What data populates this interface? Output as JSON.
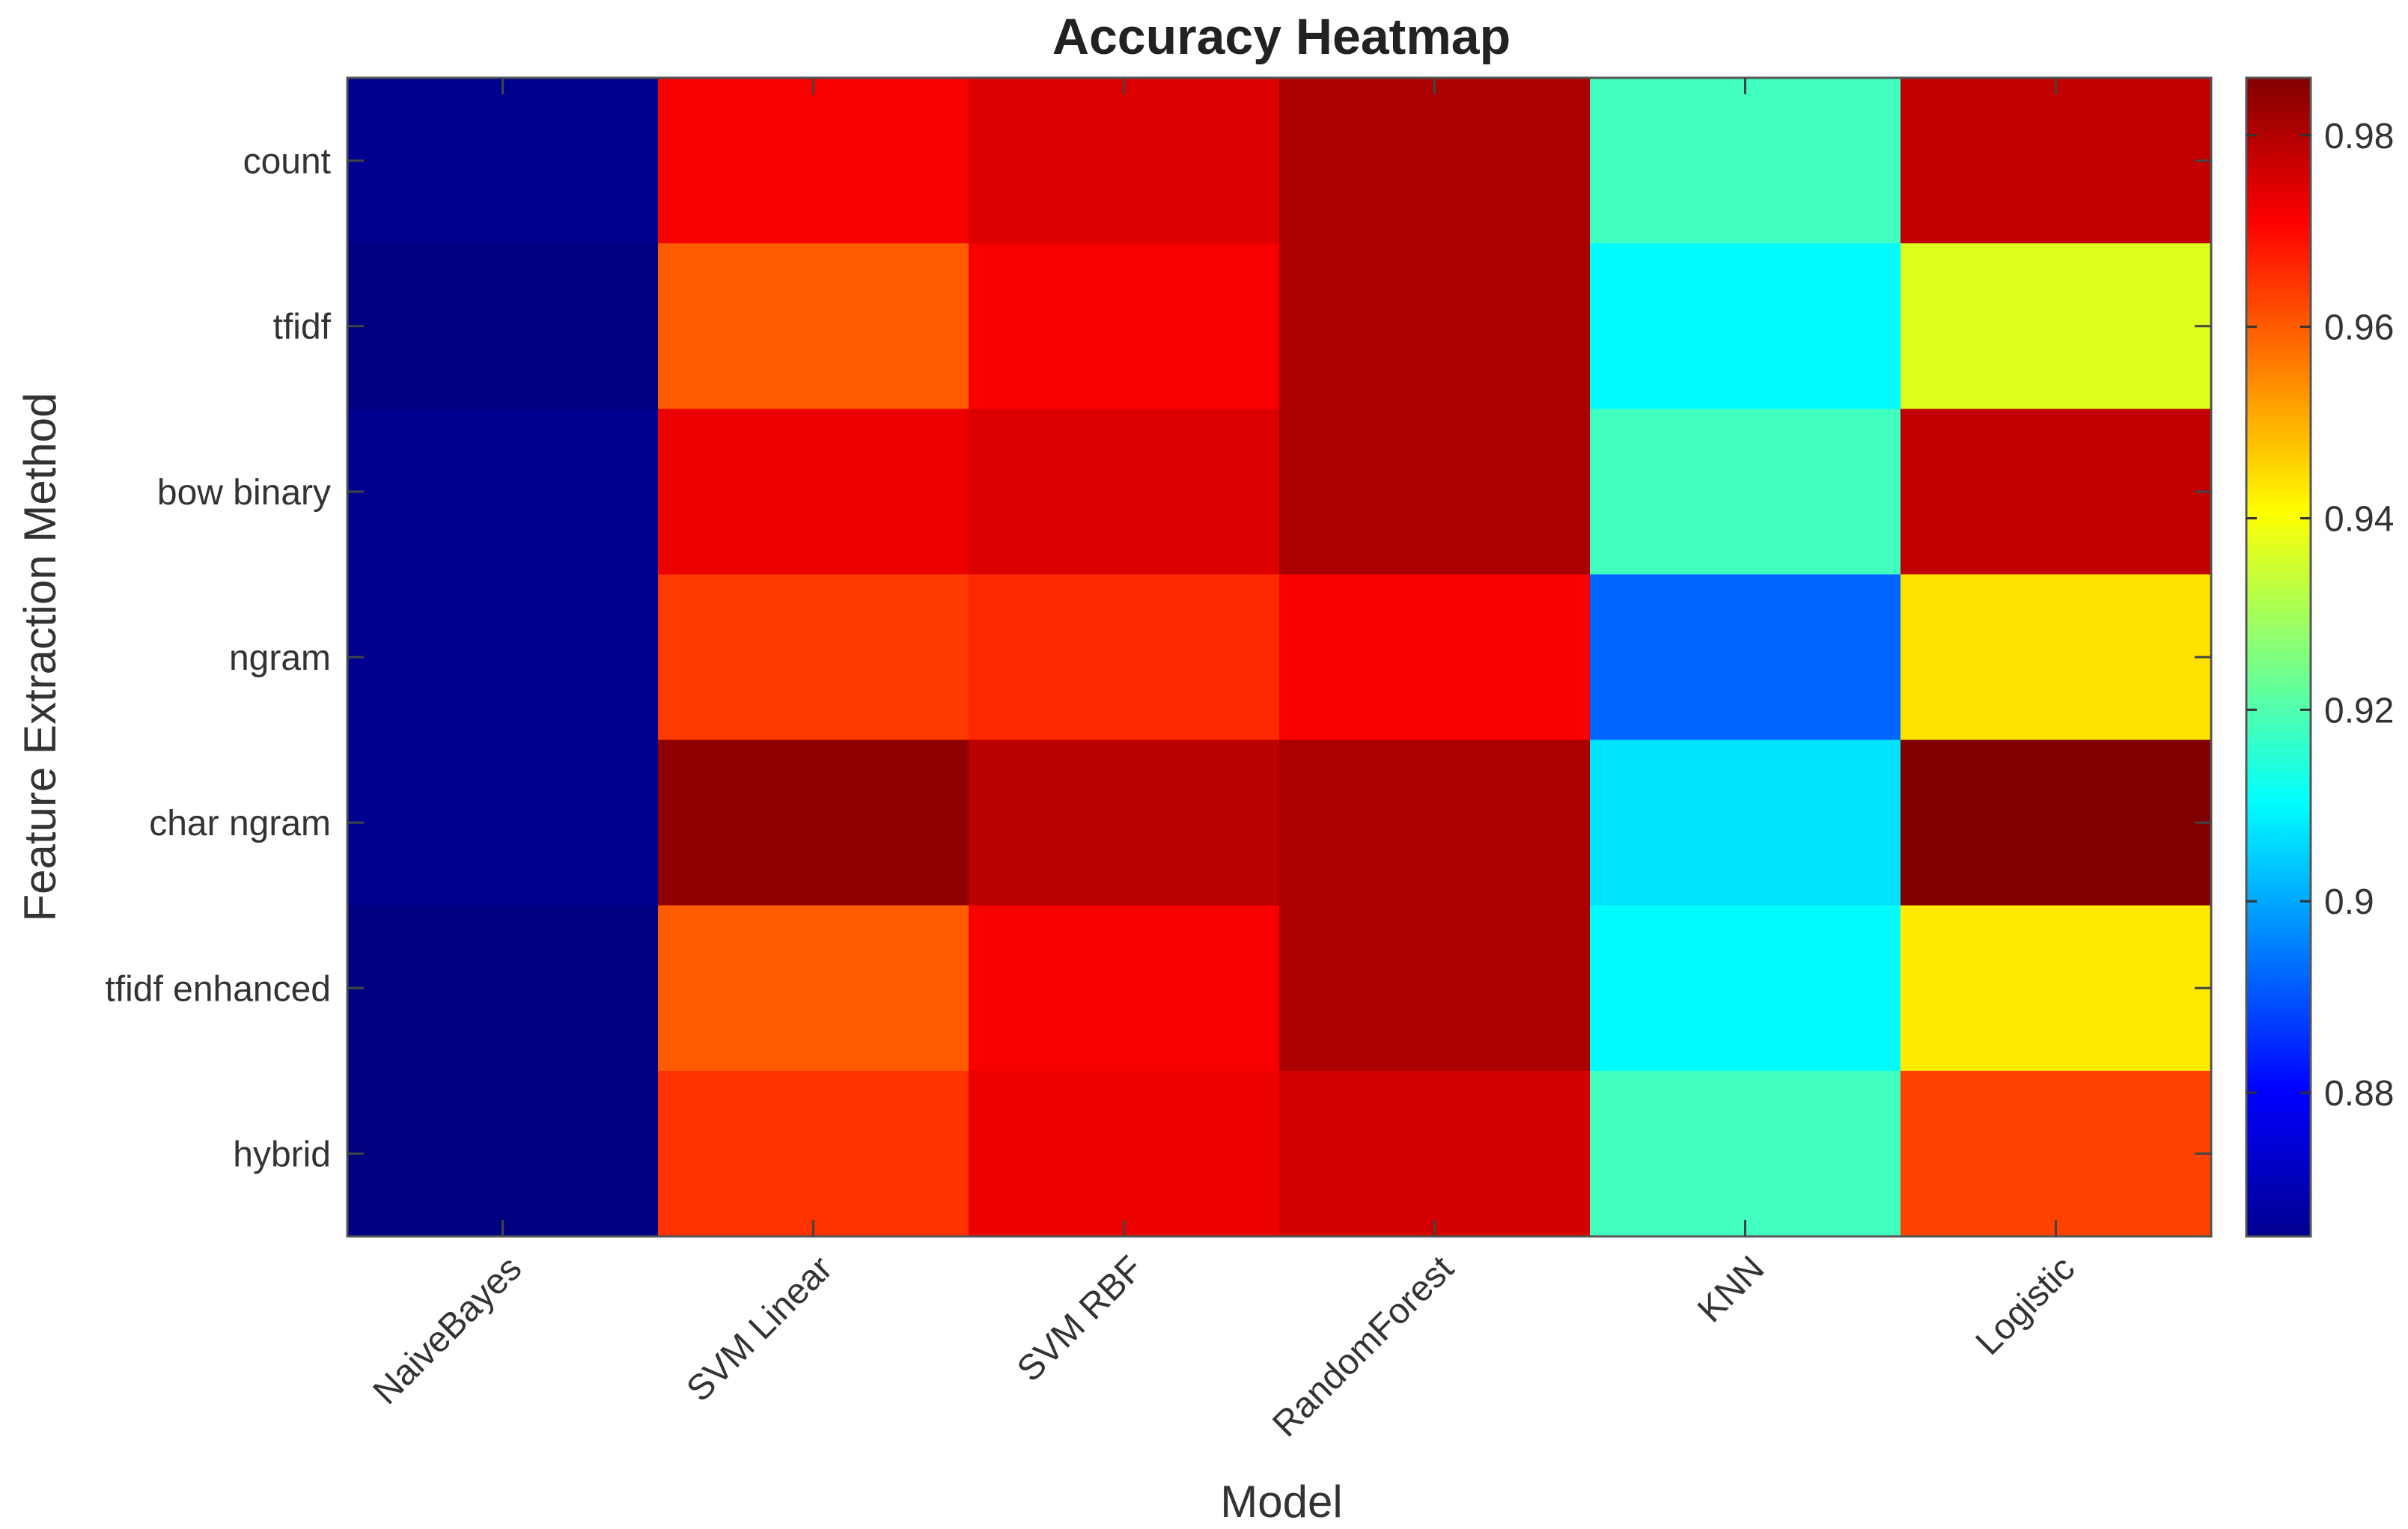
{
  "chart_data": {
    "type": "heatmap",
    "title": "Accuracy Heatmap",
    "xlabel": "Model",
    "ylabel": "Feature Extraction Method",
    "x_categories": [
      "NaiveBayes",
      "SVM Linear",
      "SVM RBF",
      "RandomForest",
      "KNN",
      "Logistic"
    ],
    "y_categories": [
      "count",
      "tfidf",
      "bow binary",
      "ngram",
      "char ngram",
      "tfidf enhanced",
      "hybrid"
    ],
    "values": [
      [
        0.867,
        0.972,
        0.975,
        0.981,
        0.918,
        0.978
      ],
      [
        0.865,
        0.96,
        0.972,
        0.981,
        0.91,
        0.937
      ],
      [
        0.867,
        0.973,
        0.975,
        0.981,
        0.918,
        0.978
      ],
      [
        0.867,
        0.964,
        0.966,
        0.972,
        0.892,
        0.944
      ],
      [
        0.867,
        0.984,
        0.979,
        0.981,
        0.907,
        0.986
      ],
      [
        0.865,
        0.96,
        0.972,
        0.981,
        0.91,
        0.943
      ],
      [
        0.865,
        0.965,
        0.973,
        0.976,
        0.918,
        0.963
      ]
    ],
    "colormap": "jet",
    "clim": [
      0.865,
      0.986
    ],
    "colorbar": {
      "ticks": [
        0.88,
        0.9,
        0.92,
        0.94,
        0.96,
        0.98
      ],
      "tick_labels": [
        "0.88",
        "0.9",
        "0.92",
        "0.94",
        "0.96",
        "0.98"
      ]
    },
    "grid": false,
    "legend": "colorbar-right"
  }
}
